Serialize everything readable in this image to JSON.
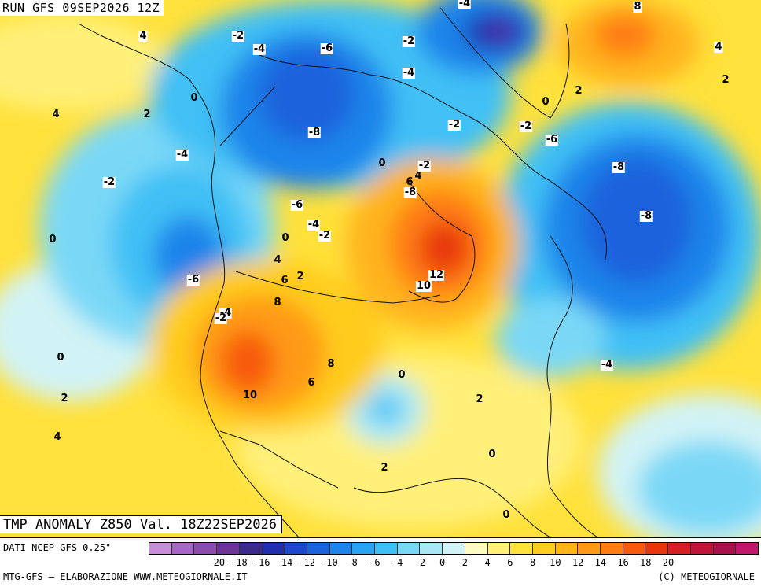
{
  "header": {
    "run_title": "RUN GFS 09SEP2026 12Z"
  },
  "map_title": "TMP ANOMALY Z850 Val. 18Z22SEP2026",
  "footer": {
    "data_source": "DATI NCEP GFS 0.25°",
    "credit_left": "MTG-GFS – ELABORAZIONE WWW.METEOGIORNALE.IT",
    "credit_right": "(C) METEOGIORNALE"
  },
  "legend": {
    "colors": [
      "#c88ed8",
      "#a965c5",
      "#8e4aad",
      "#6c3497",
      "#3b2a8c",
      "#1f2fae",
      "#1c48cc",
      "#1b62dc",
      "#1e84ea",
      "#2ba2f0",
      "#3fc0f5",
      "#7ad8f6",
      "#a8e8f5",
      "#d2f3f5",
      "#fff9c2",
      "#fff07a",
      "#ffe13b",
      "#ffcc1f",
      "#ffb41a",
      "#ff9a17",
      "#ff7d12",
      "#f75a10",
      "#e8370f",
      "#d51f22",
      "#bf1538",
      "#a8124b",
      "#c2186b"
    ],
    "ticks": [
      "-20",
      "-18",
      "-16",
      "-14",
      "-12",
      "-10",
      "-8",
      "-6",
      "-4",
      "-2",
      "0",
      "2",
      "4",
      "6",
      "8",
      "10",
      "12",
      "14",
      "16",
      "18",
      "20"
    ]
  },
  "contour_labels": [
    "4",
    "-2",
    "-4",
    "-6",
    "-2",
    "-4",
    "8",
    "4",
    "0",
    "2",
    "4",
    "2",
    "-8",
    "-2",
    "-6",
    "-8",
    "-2",
    "0",
    "2",
    "-4",
    "-2",
    "-6",
    "-8",
    "0",
    "6",
    "4",
    "-4",
    "-2",
    "-6",
    "-2",
    "0",
    "4",
    "6",
    "2",
    "12",
    "10",
    "-8",
    "-4",
    "8",
    "-4",
    "-2",
    "0",
    "8",
    "6",
    "10",
    "0",
    "-4",
    "2",
    "2",
    "4",
    "0",
    "2",
    "0",
    "0"
  ]
}
